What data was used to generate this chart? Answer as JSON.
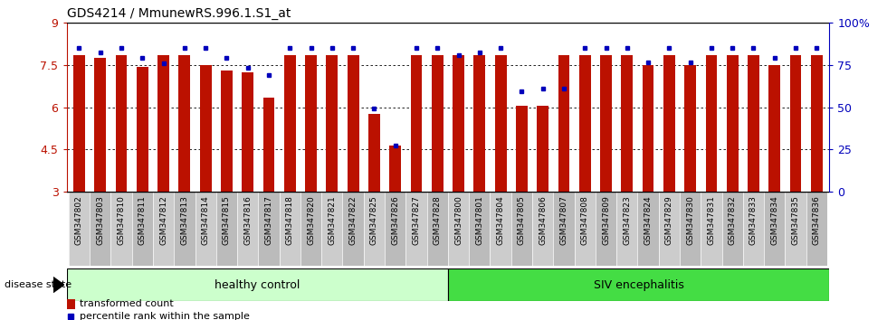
{
  "title": "GDS4214 / MmunewRS.996.1.S1_at",
  "samples": [
    "GSM347802",
    "GSM347803",
    "GSM347810",
    "GSM347811",
    "GSM347812",
    "GSM347813",
    "GSM347814",
    "GSM347815",
    "GSM347816",
    "GSM347817",
    "GSM347818",
    "GSM347820",
    "GSM347821",
    "GSM347822",
    "GSM347825",
    "GSM347826",
    "GSM347827",
    "GSM347828",
    "GSM347800",
    "GSM347801",
    "GSM347804",
    "GSM347805",
    "GSM347806",
    "GSM347807",
    "GSM347808",
    "GSM347809",
    "GSM347823",
    "GSM347824",
    "GSM347829",
    "GSM347830",
    "GSM347831",
    "GSM347832",
    "GSM347833",
    "GSM347834",
    "GSM347835",
    "GSM347836"
  ],
  "red_values": [
    7.85,
    7.75,
    7.85,
    7.42,
    7.85,
    7.85,
    7.5,
    7.3,
    7.22,
    6.35,
    7.85,
    7.85,
    7.85,
    7.85,
    5.75,
    4.65,
    7.85,
    7.85,
    7.85,
    7.85,
    7.85,
    6.05,
    6.05,
    7.85,
    7.85,
    7.85,
    7.85,
    7.5,
    7.85,
    7.5,
    7.85,
    7.85,
    7.85,
    7.5,
    7.85,
    7.85
  ],
  "blue_values": [
    8.1,
    7.95,
    8.1,
    7.75,
    7.55,
    8.1,
    8.1,
    7.75,
    7.4,
    7.15,
    8.1,
    8.1,
    8.1,
    8.1,
    5.95,
    4.65,
    8.1,
    8.1,
    7.85,
    7.95,
    8.1,
    6.55,
    6.65,
    6.65,
    8.1,
    8.1,
    8.1,
    7.6,
    8.1,
    7.6,
    8.1,
    8.1,
    8.1,
    7.75,
    8.1,
    8.1
  ],
  "n_healthy": 18,
  "ymin": 3,
  "ymax": 9,
  "bar_color": "#bb1100",
  "dot_color": "#0000bb",
  "healthy_light": "#ccffcc",
  "healthy_dark": "#44dd44",
  "yticks": [
    3,
    4.5,
    6,
    7.5,
    9
  ],
  "ytick_labels": [
    "3",
    "4.5",
    "6",
    "7.5",
    "9"
  ],
  "right_yticks_pct": [
    0,
    25,
    50,
    75,
    100
  ],
  "right_ytick_labels": [
    "0",
    "25",
    "50",
    "75",
    "100%"
  ]
}
